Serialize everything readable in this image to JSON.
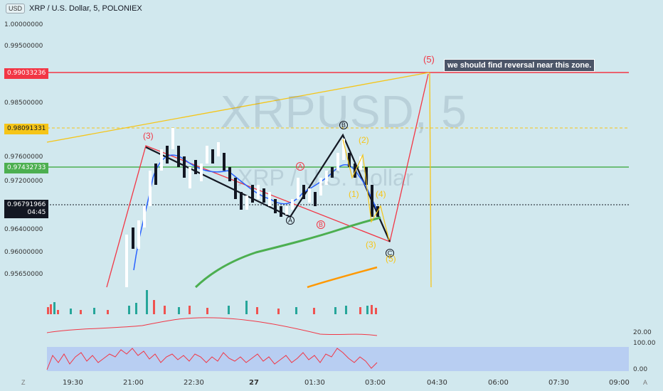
{
  "header": {
    "currency_badge": "USD",
    "title": "XRP / U.S. Dollar, 5, POLONIEX"
  },
  "watermark": {
    "symbol": "XRPUSD, 5",
    "name": "XRP / U.S. Dollar"
  },
  "price_axis": {
    "labels": [
      "1.00000000",
      "0.99500000",
      "0.98500000",
      "0.97600000",
      "0.97200000",
      "0.96400000",
      "0.96000000",
      "0.95650000"
    ]
  },
  "price_pills": {
    "red_level": "0.99033236",
    "yellow_level": "0.98091331",
    "green_level": "0.97432733",
    "current_price": "0.96791966",
    "countdown": "04:45"
  },
  "colors": {
    "background": "#d1e8ee",
    "red": "#f23645",
    "green": "#4caf50",
    "yellow": "#f5c518",
    "black": "#131722"
  },
  "annotation": {
    "text": "we should find reversal near this zone."
  },
  "wave_labels": {
    "w3_red": "(3)",
    "w5": "(5)",
    "A_black": "A",
    "B_black": "B",
    "C_black": "C",
    "A_red": "A",
    "B_red": "B",
    "w1": "(1)",
    "w2": "(2)",
    "w3": "(3)",
    "w4": "(4)",
    "w5_low": "(5)"
  },
  "oscillator": {
    "upper_value": "20.00",
    "rsi_top": "100.00",
    "rsi_bottom": "0.00"
  },
  "time_axis": {
    "labels": [
      "19:30",
      "21:00",
      "22:30",
      "27",
      "01:30",
      "03:00",
      "04:30",
      "06:00",
      "07:30",
      "09:00"
    ]
  },
  "footer_icons": {
    "left": "Z",
    "right": "A"
  }
}
